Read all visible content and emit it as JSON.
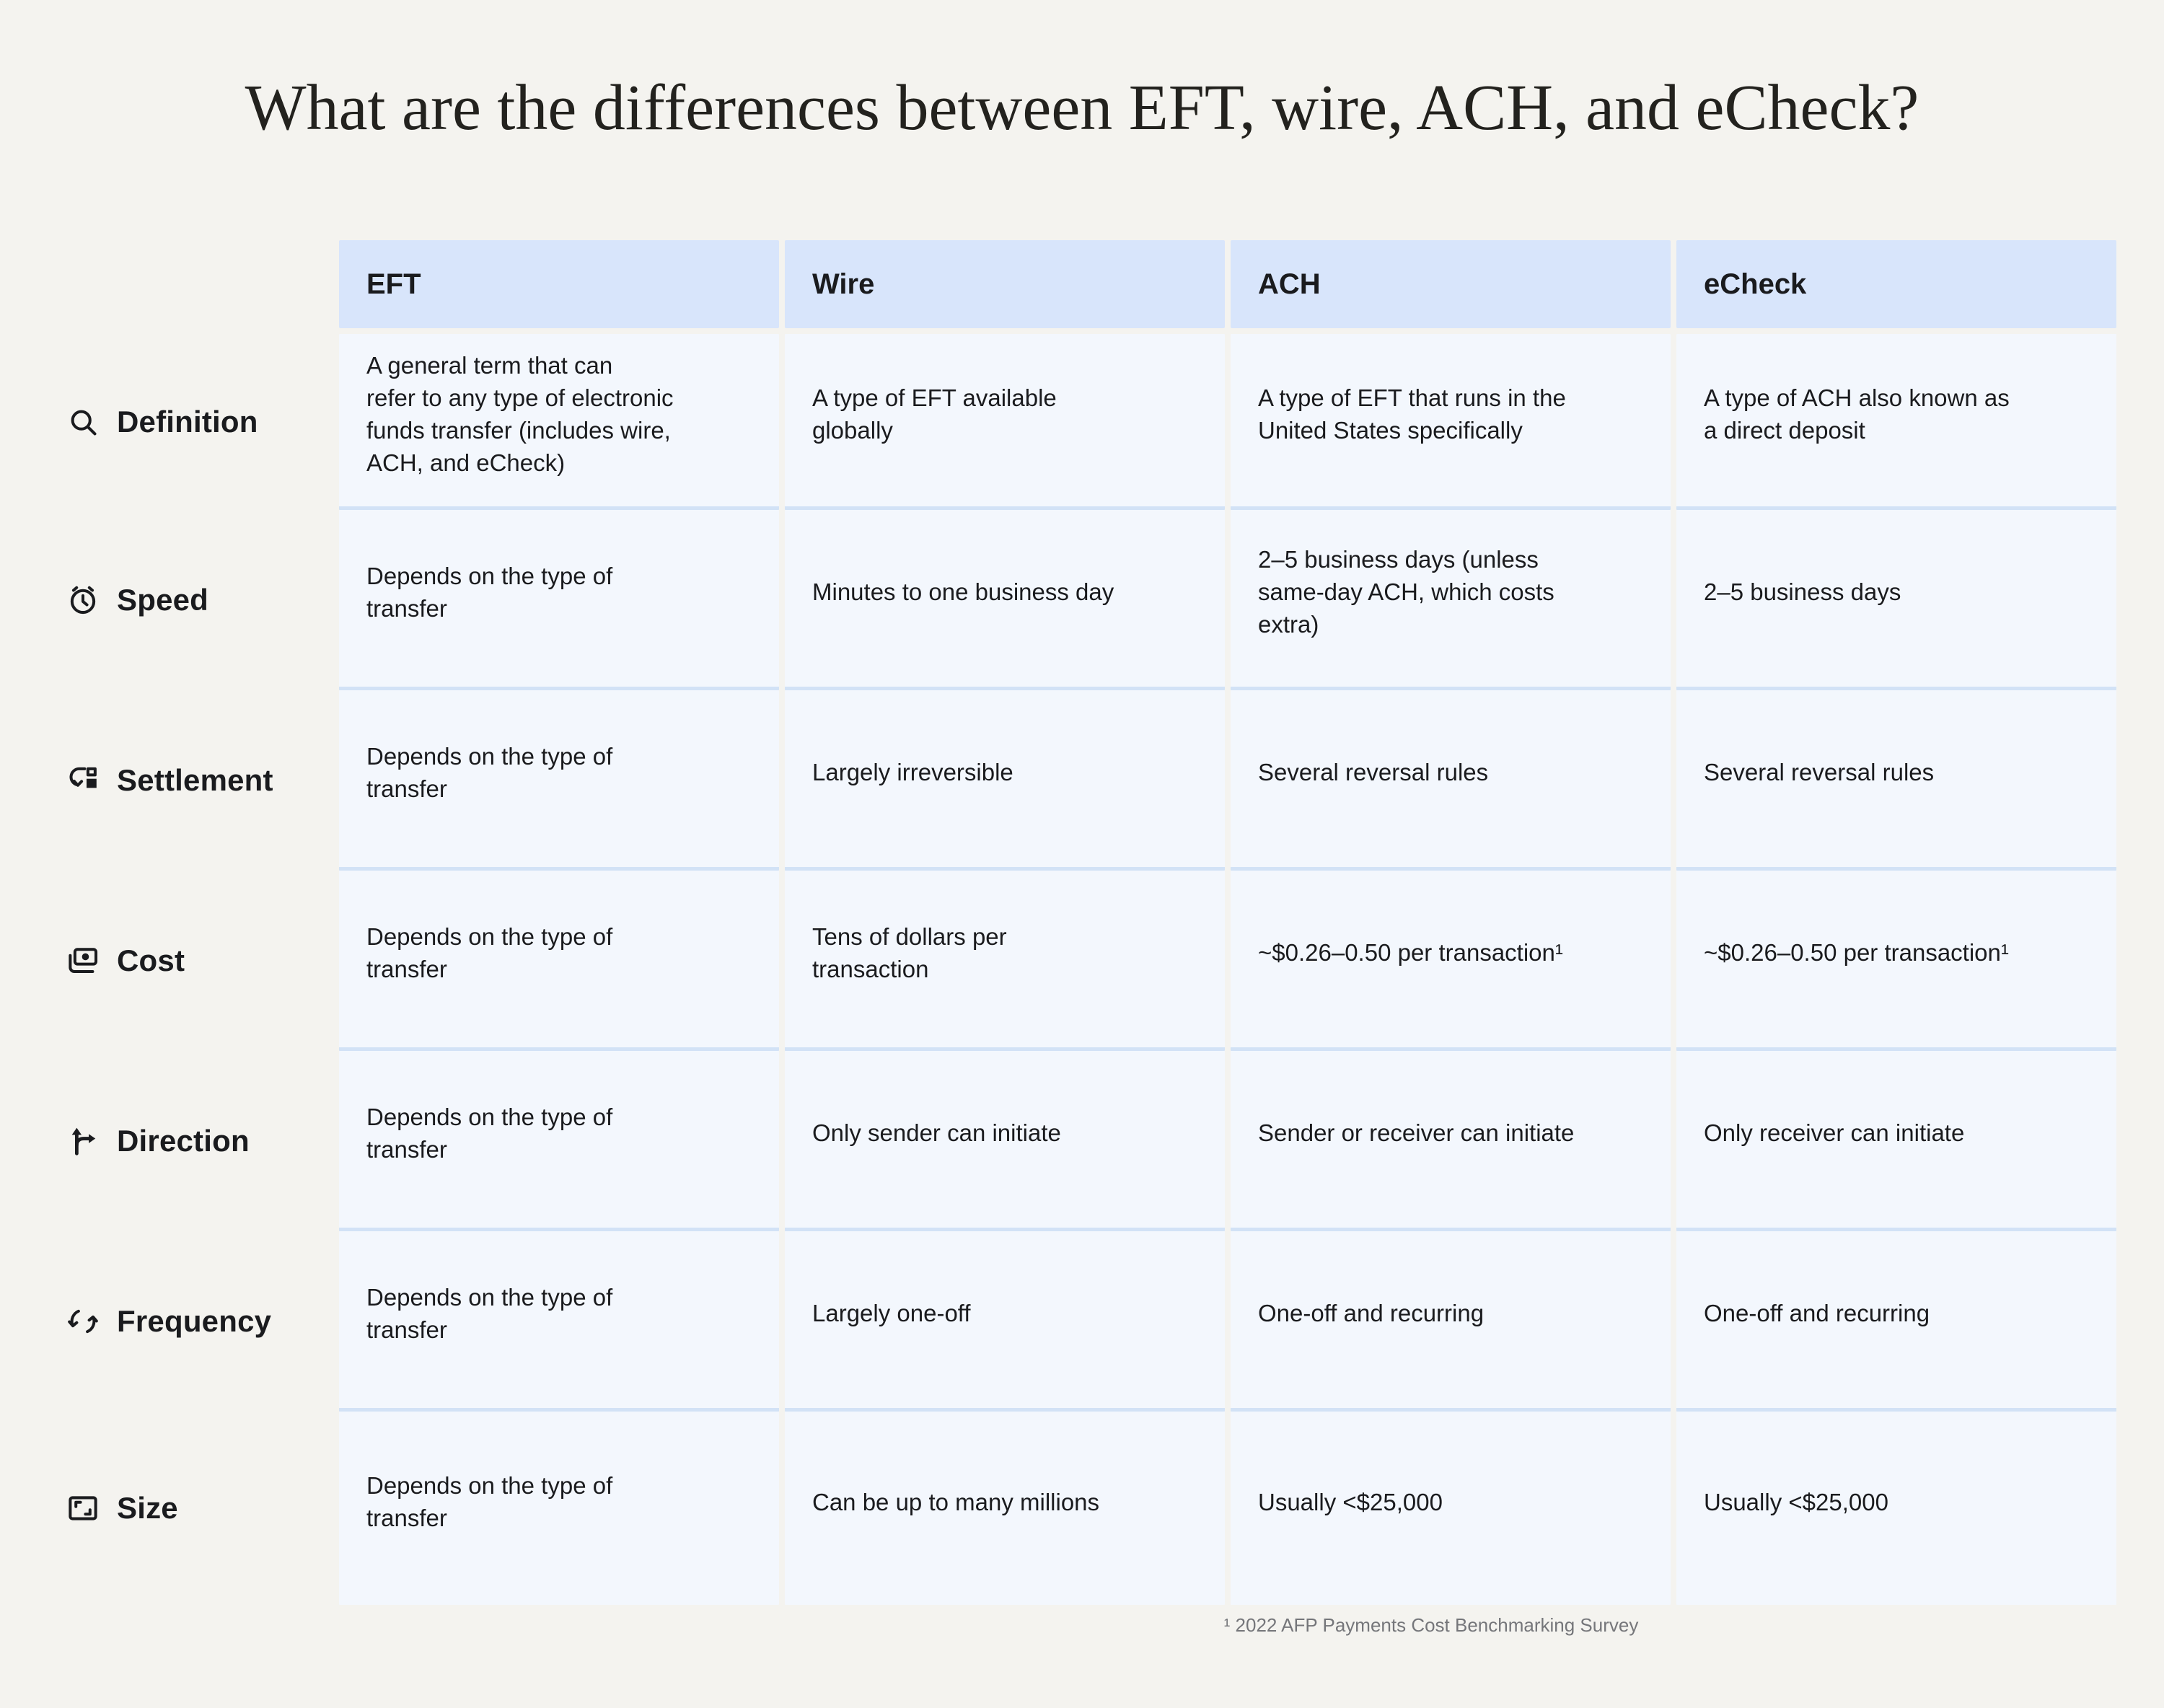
{
  "page": {
    "title": "What are the differences between EFT, wire, ACH, and eCheck?",
    "footnote": "¹ 2022 AFP Payments Cost Benchmarking Survey"
  },
  "colors": {
    "page_bg": "#f4f3ef",
    "header_bg": "#d8e5fb",
    "cell_bg": "#f3f7fd",
    "divider": "#d2e2f6",
    "text": "#1a1b1e",
    "footnote_text": "#75767a"
  },
  "table": {
    "column_headers": [
      "EFT",
      "Wire",
      "ACH",
      "eCheck"
    ],
    "rows": [
      {
        "label": "Definition",
        "icon": "search-icon",
        "cells": [
          "A general term that can\nrefer to any type of electronic\nfunds transfer (includes wire,\nACH, and eCheck)",
          "A type of EFT available\nglobally",
          "A type of EFT that runs in the\nUnited States specifically",
          "A type of ACH also known as\na direct deposit"
        ]
      },
      {
        "label": "Speed",
        "icon": "alarm-clock-icon",
        "cells": [
          "Depends on the type of\ntransfer",
          "Minutes to one business day",
          "2–5 business days (unless\nsame-day ACH, which costs\nextra)",
          "2–5 business days"
        ]
      },
      {
        "label": "Settlement",
        "icon": "transfer-return-icon",
        "cells": [
          "Depends on the type of\ntransfer",
          "Largely irreversible",
          "Several reversal rules",
          "Several reversal rules"
        ]
      },
      {
        "label": "Cost",
        "icon": "banknote-icon",
        "cells": [
          "Depends on the type of\ntransfer",
          "Tens of dollars per\ntransaction",
          "~$0.26–0.50 per transaction¹",
          "~$0.26–0.50 per transaction¹"
        ]
      },
      {
        "label": "Direction",
        "icon": "fork-arrow-icon",
        "cells": [
          "Depends on the type of\ntransfer",
          "Only sender can initiate",
          "Sender or receiver can initiate",
          "Only receiver can initiate"
        ]
      },
      {
        "label": "Frequency",
        "icon": "recurring-arrows-icon",
        "cells": [
          "Depends on the type of\ntransfer",
          "Largely one-off",
          "One-off and recurring",
          "One-off and recurring"
        ]
      },
      {
        "label": "Size",
        "icon": "scale-resize-icon",
        "cells": [
          "Depends on the type of\ntransfer",
          "Can be up to many millions",
          "Usually <$25,000",
          "Usually <$25,000"
        ]
      }
    ]
  },
  "chart_data": {
    "type": "table",
    "title": "What are the differences between EFT, wire, ACH, and eCheck?",
    "columns": [
      "EFT",
      "Wire",
      "ACH",
      "eCheck"
    ],
    "row_labels": [
      "Definition",
      "Speed",
      "Settlement",
      "Cost",
      "Direction",
      "Frequency",
      "Size"
    ],
    "rows": [
      [
        "A general term that can refer to any type of electronic funds transfer (includes wire, ACH, and eCheck)",
        "A type of EFT available globally",
        "A type of EFT that runs in the United States specifically",
        "A type of ACH also known as a direct deposit"
      ],
      [
        "Depends on the type of transfer",
        "Minutes to one business day",
        "2–5 business days (unless same-day ACH, which costs extra)",
        "2–5 business days"
      ],
      [
        "Depends on the type of transfer",
        "Largely irreversible",
        "Several reversal rules",
        "Several reversal rules"
      ],
      [
        "Depends on the type of transfer",
        "Tens of dollars per transaction",
        "~$0.26–0.50 per transaction¹",
        "~$0.26–0.50 per transaction¹"
      ],
      [
        "Depends on the type of transfer",
        "Only sender can initiate",
        "Sender or receiver can initiate",
        "Only receiver can initiate"
      ],
      [
        "Depends on the type of transfer",
        "Largely one-off",
        "One-off and recurring",
        "One-off and recurring"
      ],
      [
        "Depends on the type of transfer",
        "Can be up to many millions",
        "Usually <$25,000",
        "Usually <$25,000"
      ]
    ],
    "footnote": "¹ 2022 AFP Payments Cost Benchmarking Survey",
    "legend_position": "none",
    "grid": false
  }
}
